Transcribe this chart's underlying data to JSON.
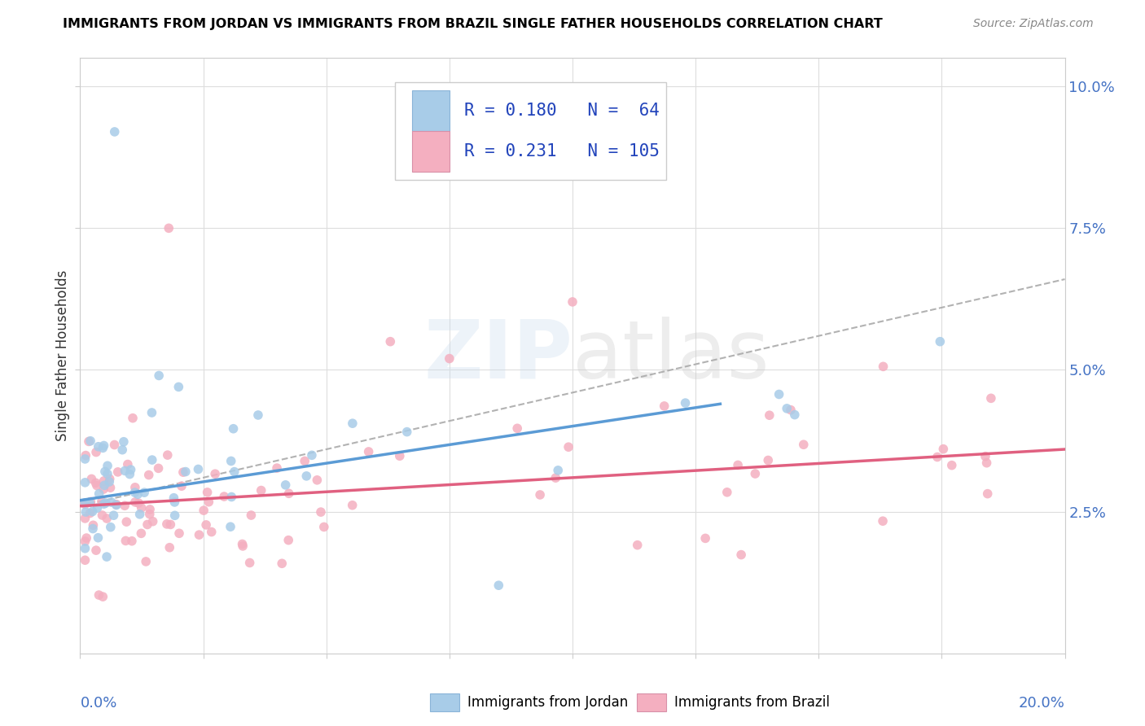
{
  "title": "IMMIGRANTS FROM JORDAN VS IMMIGRANTS FROM BRAZIL SINGLE FATHER HOUSEHOLDS CORRELATION CHART",
  "source": "Source: ZipAtlas.com",
  "ylabel": "Single Father Households",
  "yticks": [
    "2.5%",
    "5.0%",
    "7.5%",
    "10.0%"
  ],
  "ytick_vals": [
    0.025,
    0.05,
    0.075,
    0.1
  ],
  "xlim": [
    0.0,
    0.2
  ],
  "ylim": [
    0.0,
    0.105
  ],
  "color_jordan": "#a8cce8",
  "color_brazil": "#f4afc0",
  "color_jordan_line": "#5b9bd5",
  "color_brazil_line": "#e06080",
  "color_dashed": "#aaaaaa",
  "background_color": "#ffffff",
  "legend_r1": "R = 0.180",
  "legend_n1": "N =  64",
  "legend_r2": "R = 0.231",
  "legend_n2": "N = 105",
  "jordan_line_x": [
    0.0,
    0.13
  ],
  "jordan_line_y": [
    0.027,
    0.044
  ],
  "brazil_line_x": [
    0.0,
    0.2
  ],
  "brazil_line_y": [
    0.026,
    0.036
  ],
  "dashed_line_x": [
    0.0,
    0.2
  ],
  "dashed_line_y": [
    0.026,
    0.066
  ]
}
